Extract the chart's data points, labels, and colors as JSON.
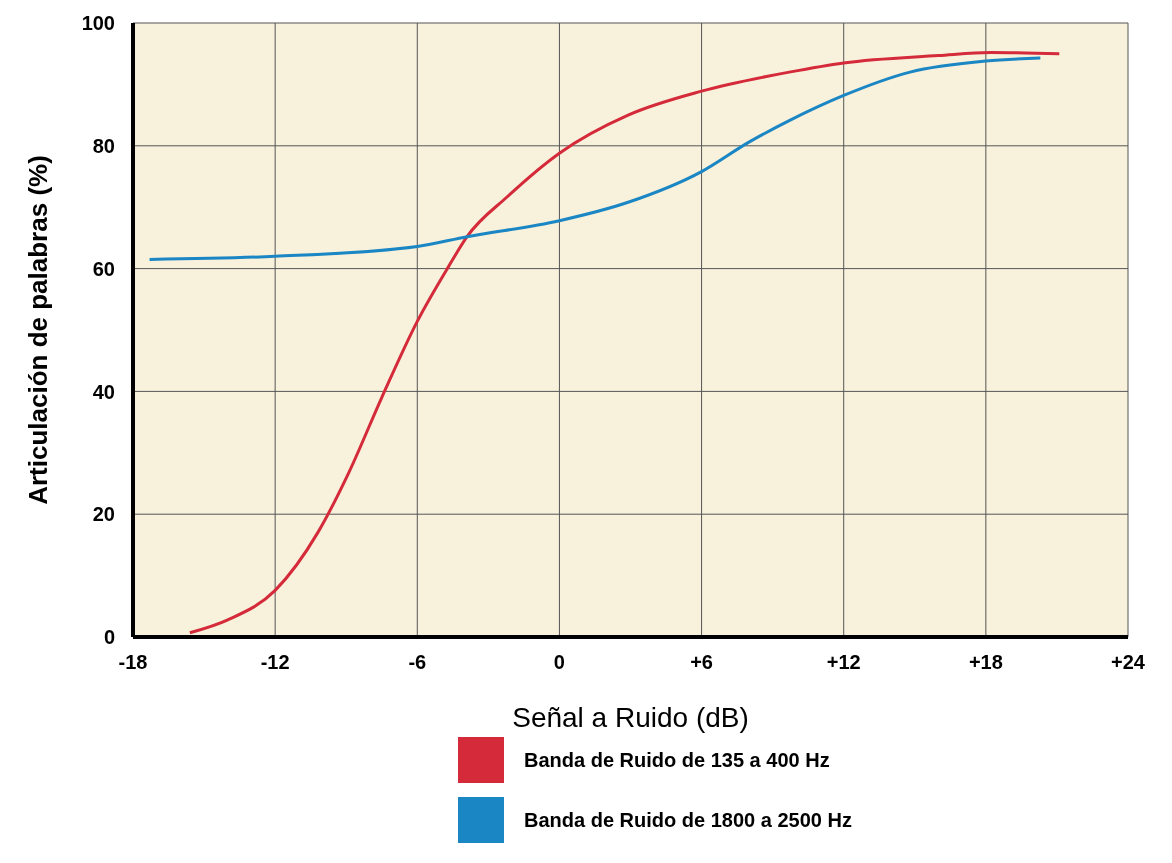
{
  "chart_data": {
    "type": "line",
    "xlabel": "Señal a Ruido (dB)",
    "ylabel": "Articulación de palabras (%)",
    "xlim": [
      -18,
      24
    ],
    "xticks": [
      -18,
      -12,
      -6,
      0,
      {
        "value": 6,
        "label": "+6"
      },
      {
        "value": 12,
        "label": "+12"
      },
      {
        "value": 18,
        "label": "+18"
      },
      {
        "value": 24,
        "label": "+24"
      }
    ],
    "ylim": [
      0,
      100
    ],
    "yticks": [
      0,
      20,
      40,
      60,
      80,
      100
    ],
    "grid": true,
    "legend": "bottom",
    "marker": "none",
    "line_style": "solid",
    "series": [
      {
        "name": "Banda de Ruido de 135 a 400 Hz",
        "color": "#d42a3a",
        "x": [
          -15.6,
          -14,
          -12,
          -10.2,
          -8.9,
          -7.5,
          -6,
          -4.7,
          -3.9,
          -2.2,
          0,
          2.9,
          6,
          9.7,
          12,
          16,
          18.2,
          21.1
        ],
        "values": [
          0.7,
          2.8,
          7.6,
          17,
          26.7,
          39,
          51.4,
          60.2,
          65.2,
          71.7,
          78.8,
          85,
          88.9,
          92,
          93.5,
          94.7,
          95.2,
          95
        ]
      },
      {
        "name": "Banda de Ruido de 1800 a 2500 Hz",
        "color": "#1a86c4",
        "x": [
          -17.3,
          -12,
          -6,
          -3.9,
          0,
          2.9,
          6,
          8,
          9.7,
          12,
          14.8,
          18,
          20.3
        ],
        "values": [
          61.5,
          62,
          63.6,
          65.2,
          67.8,
          70.8,
          75.8,
          80.6,
          84.1,
          88.2,
          92,
          93.8,
          94.3
        ]
      }
    ]
  }
}
